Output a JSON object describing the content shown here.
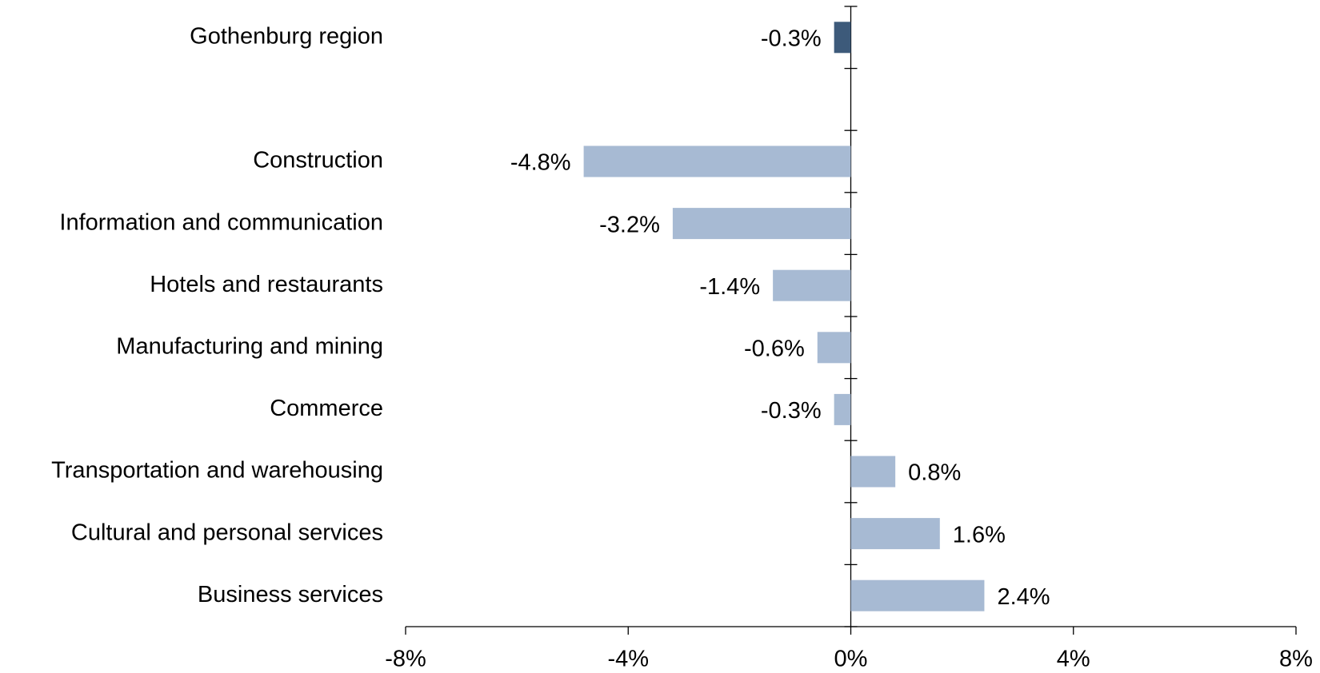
{
  "chart_data": {
    "type": "barh",
    "categories": [
      "Gothenburg region",
      null,
      "Construction",
      "Information and communication",
      "Hotels and restaurants",
      "Manufacturing and mining",
      "Commerce",
      "Transportation and warehousing",
      "Cultural and personal services",
      "Business services"
    ],
    "values": [
      -0.3,
      null,
      -4.8,
      -3.2,
      -1.4,
      -0.6,
      -0.3,
      0.8,
      1.6,
      2.4
    ],
    "value_labels": [
      "-0.3%",
      null,
      "-4.8%",
      "-3.2%",
      "-1.4%",
      "-0.6%",
      "-0.3%",
      "0.8%",
      "1.6%",
      "2.4%"
    ],
    "colors": [
      "#3d5a7a",
      null,
      "#a7bad3",
      "#a7bad3",
      "#a7bad3",
      "#a7bad3",
      "#a7bad3",
      "#a7bad3",
      "#a7bad3",
      "#a7bad3"
    ],
    "xlim": [
      -8,
      8
    ],
    "xticks": [
      {
        "value": -8,
        "label": "-8%"
      },
      {
        "value": -4,
        "label": "-4%"
      },
      {
        "value": 0,
        "label": "0%"
      },
      {
        "value": 4,
        "label": "4%"
      },
      {
        "value": 8,
        "label": "8%"
      }
    ],
    "grid": false
  }
}
